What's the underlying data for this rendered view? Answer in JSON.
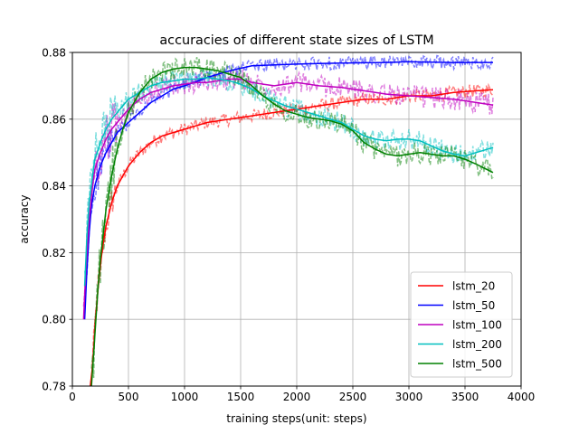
{
  "chart_data": {
    "type": "line",
    "title": "accuracies of different state sizes of LSTM",
    "xlabel": "training steps(unit: steps)",
    "ylabel": "accuracy",
    "xlim": [
      0,
      4000
    ],
    "ylim": [
      0.78,
      0.88
    ],
    "xticks": [
      0,
      500,
      1000,
      1500,
      2000,
      2500,
      3000,
      3500,
      4000
    ],
    "yticks": [
      0.78,
      0.8,
      0.82,
      0.84,
      0.86,
      0.88
    ],
    "xtick_labels": [
      "0",
      "500",
      "1000",
      "1500",
      "2000",
      "2500",
      "3000",
      "3500",
      "4000"
    ],
    "ytick_labels": [
      "0.78",
      "0.80",
      "0.82",
      "0.84",
      "0.86",
      "0.88"
    ],
    "grid": true,
    "legend_position": "lower-right",
    "series": [
      {
        "name": "lstm_20",
        "color": "#ff0000",
        "x": [
          160,
          180,
          200,
          220,
          240,
          260,
          280,
          300,
          350,
          400,
          450,
          500,
          550,
          600,
          700,
          800,
          900,
          1000,
          1200,
          1400,
          1600,
          1800,
          2000,
          2200,
          2400,
          2600,
          2800,
          3000,
          3200,
          3400,
          3600,
          3750
        ],
        "y": [
          0.78,
          0.786,
          0.797,
          0.806,
          0.813,
          0.819,
          0.824,
          0.828,
          0.835,
          0.84,
          0.843,
          0.846,
          0.848,
          0.85,
          0.853,
          0.855,
          0.856,
          0.857,
          0.859,
          0.86,
          0.861,
          0.862,
          0.863,
          0.864,
          0.865,
          0.866,
          0.866,
          0.867,
          0.867,
          0.868,
          0.8685,
          0.8688
        ]
      },
      {
        "name": "lstm_50",
        "color": "#0000ff",
        "x": [
          110,
          130,
          150,
          170,
          200,
          250,
          300,
          350,
          400,
          500,
          600,
          700,
          800,
          900,
          1000,
          1200,
          1400,
          1600,
          1800,
          2000,
          2200,
          2400,
          2600,
          2800,
          3000,
          3200,
          3400,
          3600,
          3750
        ],
        "y": [
          0.8,
          0.815,
          0.826,
          0.834,
          0.84,
          0.846,
          0.85,
          0.853,
          0.856,
          0.859,
          0.862,
          0.865,
          0.867,
          0.869,
          0.87,
          0.8725,
          0.8745,
          0.876,
          0.8763,
          0.8765,
          0.8767,
          0.8768,
          0.8769,
          0.877,
          0.8772,
          0.8771,
          0.877,
          0.877,
          0.877
        ]
      },
      {
        "name": "lstm_100",
        "color": "#bf00bf",
        "x": [
          100,
          120,
          150,
          180,
          200,
          250,
          300,
          350,
          400,
          450,
          500,
          600,
          700,
          800,
          900,
          1000,
          1100,
          1200,
          1300,
          1400,
          1500,
          1600,
          1700,
          1800,
          2000,
          2200,
          2400,
          2600,
          2800,
          3000,
          3200,
          3400,
          3600,
          3750
        ],
        "y": [
          0.8,
          0.815,
          0.83,
          0.84,
          0.845,
          0.85,
          0.854,
          0.857,
          0.859,
          0.861,
          0.863,
          0.866,
          0.868,
          0.869,
          0.87,
          0.8705,
          0.871,
          0.871,
          0.8715,
          0.872,
          0.872,
          0.871,
          0.8705,
          0.87,
          0.871,
          0.87,
          0.8695,
          0.8685,
          0.8675,
          0.867,
          0.8665,
          0.866,
          0.865,
          0.8642
        ]
      },
      {
        "name": "lstm_200",
        "color": "#00bfbf",
        "x": [
          110,
          130,
          150,
          180,
          200,
          250,
          300,
          350,
          400,
          450,
          500,
          600,
          700,
          800,
          900,
          1000,
          1100,
          1200,
          1300,
          1400,
          1500,
          1600,
          1700,
          1800,
          1900,
          2000,
          2200,
          2400,
          2500,
          2600,
          2700,
          2800,
          2900,
          3000,
          3100,
          3200,
          3300,
          3400,
          3500,
          3600,
          3750
        ],
        "y": [
          0.81,
          0.825,
          0.835,
          0.843,
          0.848,
          0.853,
          0.857,
          0.86,
          0.862,
          0.864,
          0.866,
          0.868,
          0.87,
          0.871,
          0.8715,
          0.872,
          0.872,
          0.8725,
          0.872,
          0.8715,
          0.8705,
          0.869,
          0.867,
          0.8655,
          0.864,
          0.863,
          0.861,
          0.859,
          0.857,
          0.855,
          0.854,
          0.8535,
          0.854,
          0.854,
          0.8535,
          0.852,
          0.8505,
          0.8495,
          0.849,
          0.85,
          0.8515
        ]
      },
      {
        "name": "lstm_500",
        "color": "#008000",
        "x": [
          170,
          190,
          210,
          230,
          250,
          280,
          300,
          350,
          400,
          450,
          500,
          600,
          700,
          800,
          900,
          1000,
          1100,
          1200,
          1300,
          1400,
          1500,
          1600,
          1700,
          1800,
          1900,
          2000,
          2100,
          2200,
          2300,
          2400,
          2500,
          2600,
          2700,
          2800,
          2900,
          3000,
          3100,
          3200,
          3300,
          3400,
          3500,
          3600,
          3750
        ],
        "y": [
          0.78,
          0.79,
          0.8,
          0.81,
          0.818,
          0.827,
          0.833,
          0.843,
          0.851,
          0.857,
          0.862,
          0.868,
          0.872,
          0.874,
          0.875,
          0.8755,
          0.8755,
          0.875,
          0.8745,
          0.8735,
          0.8725,
          0.87,
          0.867,
          0.8645,
          0.8625,
          0.8615,
          0.8605,
          0.86,
          0.8595,
          0.8585,
          0.8565,
          0.853,
          0.851,
          0.8495,
          0.849,
          0.8495,
          0.85,
          0.8495,
          0.849,
          0.849,
          0.848,
          0.8465,
          0.844
        ]
      }
    ]
  }
}
